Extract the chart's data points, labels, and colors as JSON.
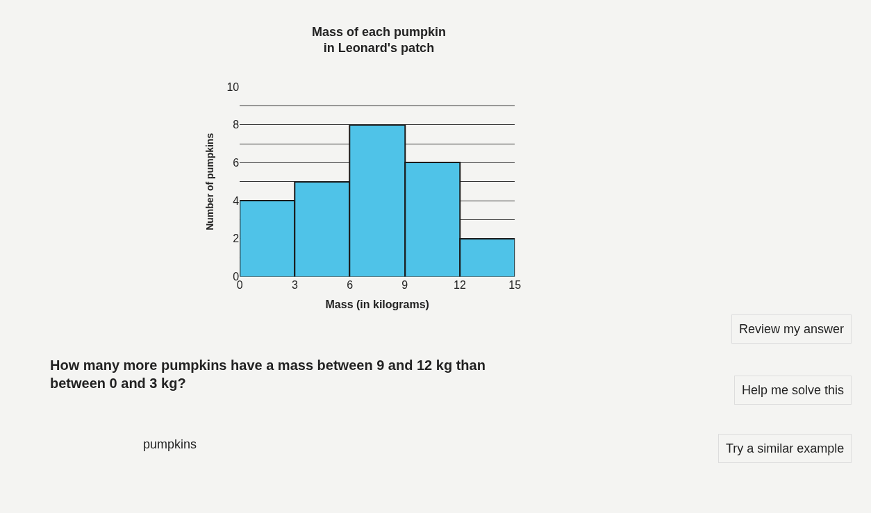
{
  "chart_data": {
    "type": "histogram",
    "title": "Mass of each pumpkin\nin Leonard's patch",
    "xlabel": "Mass (in kilograms)",
    "ylabel": "Number of pumpkins",
    "bins": [
      0,
      3,
      6,
      9,
      12,
      15
    ],
    "values": [
      4,
      5,
      8,
      6,
      2
    ],
    "color": "#4fc3e8",
    "xlim": [
      0,
      15
    ],
    "xticks": [
      0,
      3,
      6,
      9,
      12,
      15
    ],
    "ylim": [
      0,
      10
    ],
    "yticks": [
      0,
      {
        "value": 1,
        "label": null
      },
      2,
      {
        "value": 3,
        "label": null
      },
      4,
      {
        "value": 5,
        "label": null
      },
      6,
      {
        "value": 7,
        "label": null
      },
      8,
      {
        "value": 9,
        "label": null
      },
      10
    ],
    "grid": "y",
    "annotations": [
      "How many more pumpkins have a mass between 9 and 12 kg than\nbetween 0 and 3 kg?",
      "pumpkins",
      "Review my answer",
      "Help me solve this",
      "Try a similar example"
    ]
  }
}
